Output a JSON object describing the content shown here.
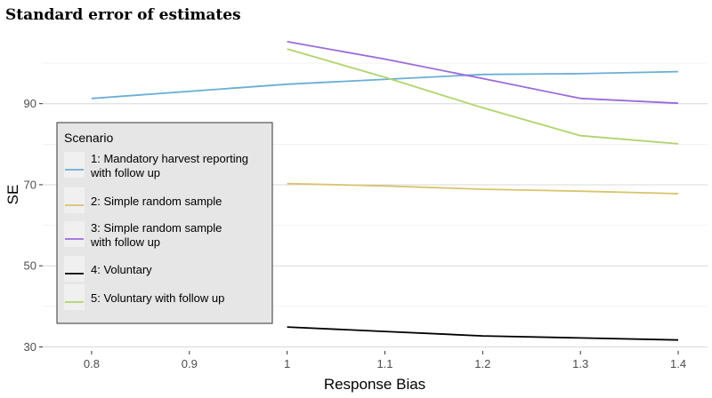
{
  "chart_data": {
    "type": "line",
    "title": "Standard error of estimates",
    "xlabel": "Response Bias",
    "ylabel": "SE",
    "xlim": [
      0.75,
      1.43
    ],
    "ylim": [
      29,
      109
    ],
    "x_ticks": [
      "0.8",
      "0.9",
      "1",
      "1.1",
      "1.2",
      "1.3",
      "1.4"
    ],
    "y_ticks": [
      "30",
      "50",
      "70",
      "90"
    ],
    "grid": true,
    "legend": {
      "title": "Scenario",
      "placement": "left"
    },
    "series": [
      {
        "name": "1: Mandatory harvest reporting with follow up",
        "label_lines": [
          "1: Mandatory harvest reporting",
          "with follow up"
        ],
        "color": "#6aaed6",
        "x": [
          0.8,
          1.0,
          1.2,
          1.3,
          1.4
        ],
        "y": [
          91.3,
          94.8,
          97.2,
          97.4,
          97.9
        ]
      },
      {
        "name": "2: Simple random sample",
        "label_lines": [
          "2: Simple random sample"
        ],
        "color": "#d9c36b",
        "x": [
          1.0,
          1.1,
          1.2,
          1.3,
          1.4
        ],
        "y": [
          70.3,
          69.7,
          68.9,
          68.4,
          67.8
        ]
      },
      {
        "name": "3: Simple random sample with follow up",
        "label_lines": [
          "3: Simple random sample",
          "with follow up"
        ],
        "color": "#9b6bdc",
        "x": [
          1.0,
          1.1,
          1.2,
          1.3,
          1.4
        ],
        "y": [
          105.3,
          101.0,
          96.2,
          91.3,
          90.1
        ]
      },
      {
        "name": "4: Voluntary",
        "label_lines": [
          "4: Voluntary"
        ],
        "color": "#000000",
        "x": [
          1.0,
          1.1,
          1.2,
          1.3,
          1.4
        ],
        "y": [
          34.9,
          33.8,
          32.7,
          32.2,
          31.7
        ]
      },
      {
        "name": "5: Voluntary with follow up",
        "label_lines": [
          "5: Voluntary with follow up"
        ],
        "color": "#b0d46b",
        "x": [
          1.0,
          1.1,
          1.2,
          1.3,
          1.4
        ],
        "y": [
          103.5,
          96.5,
          89.0,
          82.1,
          80.1
        ]
      }
    ]
  }
}
